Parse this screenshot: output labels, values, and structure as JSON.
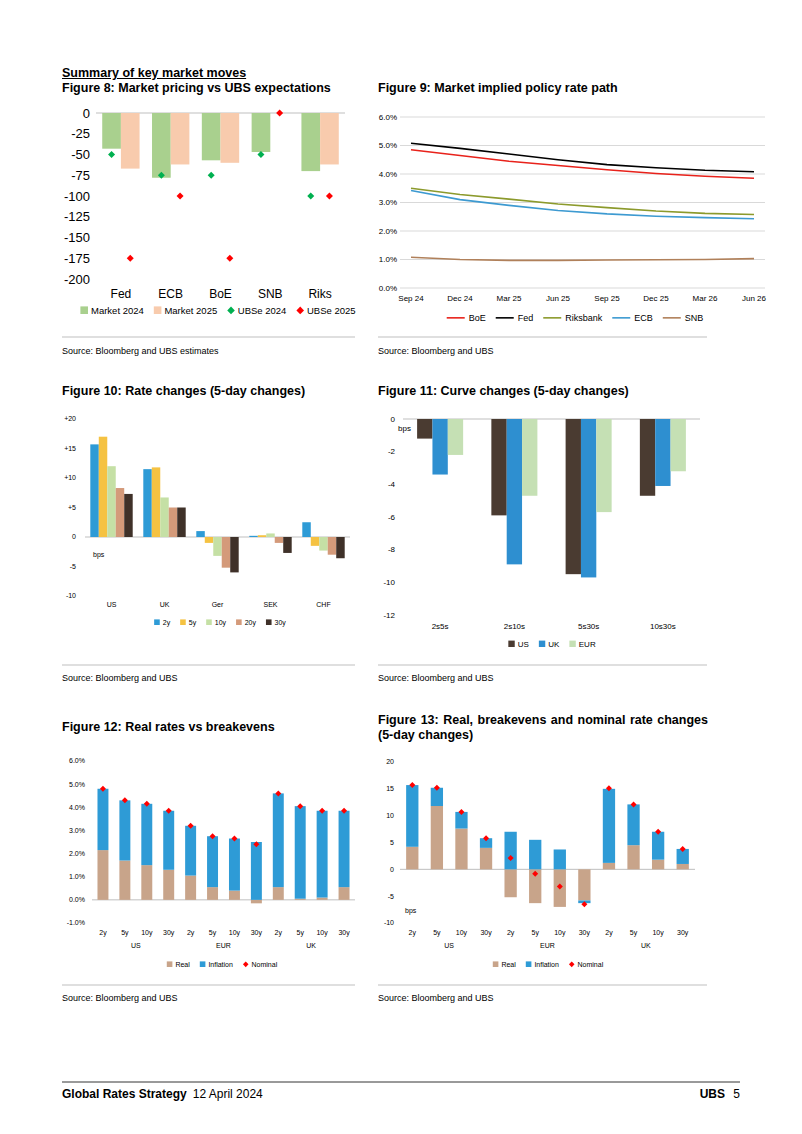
{
  "page": {
    "heading": "Summary of key market moves",
    "footer": {
      "report": "Global Rates Strategy",
      "date": "12 April 2024",
      "brand": "UBS",
      "page_number": "5"
    }
  },
  "chart_data": [
    {
      "type": "bar",
      "title": "Figure 8: Market pricing vs UBS expectations",
      "source": "Source: Bloomberg and UBS estimates",
      "categories": [
        "Fed",
        "ECB",
        "BoE",
        "SNB",
        "Riks"
      ],
      "series": [
        {
          "name": "Market 2024",
          "type": "bar",
          "color": "#a9d08e",
          "values": [
            -43,
            -78,
            -57,
            -47,
            -70
          ]
        },
        {
          "name": "Market 2025",
          "type": "bar",
          "color": "#f8cbad",
          "values": [
            -67,
            -62,
            -60,
            0,
            -62
          ]
        },
        {
          "name": "UBSe 2024",
          "type": "scatter",
          "marker": "diamond",
          "color": "#00b050",
          "values": [
            -50,
            -75,
            -75,
            -50,
            -100
          ]
        },
        {
          "name": "UBSe 2025",
          "type": "scatter",
          "marker": "diamond",
          "color": "#ff0000",
          "values": [
            -175,
            -100,
            -175,
            0,
            -100
          ]
        }
      ],
      "ylim": [
        -200,
        0
      ],
      "yticks": [
        0,
        -25,
        -50,
        -75,
        -100,
        -125,
        -150,
        -175,
        -200
      ],
      "grid": false,
      "legend": "bottom"
    },
    {
      "type": "line",
      "title": "Figure 9: Market implied policy rate path",
      "source": "Source: Bloomberg and UBS",
      "categories": [
        "Sep 24",
        "Dec 24",
        "Mar 25",
        "Jun 25",
        "Sep 25",
        "Dec 25",
        "Mar 26",
        "Jun 26"
      ],
      "series": [
        {
          "name": "BoE",
          "color": "#e8221b",
          "values": [
            4.85,
            4.65,
            4.45,
            4.3,
            4.15,
            4.02,
            3.92,
            3.85
          ]
        },
        {
          "name": "Fed",
          "color": "#000000",
          "values": [
            5.08,
            4.9,
            4.7,
            4.5,
            4.33,
            4.22,
            4.13,
            4.08
          ]
        },
        {
          "name": "Riksbank",
          "color": "#8c9a2c",
          "values": [
            3.5,
            3.28,
            3.12,
            2.95,
            2.82,
            2.7,
            2.62,
            2.58
          ]
        },
        {
          "name": "ECB",
          "color": "#3d9ad1",
          "values": [
            3.42,
            3.1,
            2.9,
            2.72,
            2.6,
            2.52,
            2.47,
            2.43
          ]
        },
        {
          "name": "SNB",
          "color": "#b0805a",
          "values": [
            1.08,
            1.0,
            0.97,
            0.97,
            0.98,
            0.99,
            1.0,
            1.03
          ]
        }
      ],
      "ylim": [
        0,
        6
      ],
      "yticks": [
        {
          "value": 6,
          "label": "6.0%"
        },
        {
          "value": 5,
          "label": "5.0%"
        },
        {
          "value": 4,
          "label": "4.0%"
        },
        {
          "value": 3,
          "label": "3.0%"
        },
        {
          "value": 2,
          "label": "2.0%"
        },
        {
          "value": 1,
          "label": "1.0%"
        },
        {
          "value": 0,
          "label": "0.0%"
        }
      ],
      "grid": true,
      "legend": "bottom"
    },
    {
      "type": "bar",
      "title": "Figure 10: Rate changes (5-day changes)",
      "source": "Source: Bloomberg and UBS",
      "y_label": "bps",
      "categories": [
        "US",
        "UK",
        "Ger",
        "SEK",
        "CHF"
      ],
      "series": [
        {
          "name": "2y",
          "color": "#2e9bd6",
          "values": [
            15.7,
            11.5,
            1,
            0.2,
            2.5
          ]
        },
        {
          "name": "5y",
          "color": "#f5c242",
          "values": [
            17,
            11.8,
            -1,
            0.3,
            -1.5
          ]
        },
        {
          "name": "10y",
          "color": "#c5e0a5",
          "values": [
            12,
            6.7,
            -3.2,
            0.6,
            -2.3
          ]
        },
        {
          "name": "20y",
          "color": "#d49a7a",
          "values": [
            8.3,
            5,
            -5.2,
            -1,
            -3
          ]
        },
        {
          "name": "30y",
          "color": "#3f3129",
          "values": [
            7.3,
            5,
            -6,
            -2.7,
            -3.6
          ]
        }
      ],
      "ylim": [
        -10,
        20
      ],
      "yticks": [
        {
          "value": 20,
          "label": "+20"
        },
        {
          "value": 15,
          "label": "+15"
        },
        {
          "value": 10,
          "label": "+10"
        },
        {
          "value": 5,
          "label": "+5"
        },
        0,
        -5,
        -10
      ],
      "grid": false,
      "legend": "bottom"
    },
    {
      "type": "bar",
      "title": "Figure 11: Curve changes (5-day changes)",
      "source": "Source: Bloomberg and UBS",
      "y_label": "bps",
      "categories": [
        "2s5s",
        "2s10s",
        "5s30s",
        "10s30s"
      ],
      "series": [
        {
          "name": "US",
          "color": "#4a3b31",
          "values": [
            -1.2,
            -5.9,
            -9.5,
            -4.7
          ]
        },
        {
          "name": "UK",
          "color": "#2e8fd0",
          "values": [
            -3.4,
            -8.9,
            -9.7,
            -4.1
          ]
        },
        {
          "name": "EUR",
          "color": "#c5e0b4",
          "values": [
            -2.2,
            -4.7,
            -5.7,
            -3.2
          ]
        }
      ],
      "ylim": [
        -12,
        0
      ],
      "yticks": [
        0,
        -2,
        -4,
        -6,
        -8,
        -10,
        -12
      ],
      "grid": false,
      "legend": "bottom"
    },
    {
      "type": "bar",
      "title": "Figure 12: Real rates vs breakevens",
      "source": "Source: Bloomberg and UBS",
      "stacked": true,
      "categories": [
        "2y",
        "5y",
        "10y",
        "30y",
        "2y",
        "5y",
        "10y",
        "30y",
        "2y",
        "5y",
        "10y",
        "30y"
      ],
      "x_groups": [
        "US",
        "EUR",
        "UK"
      ],
      "series": [
        {
          "name": "Real",
          "type": "bar",
          "color": "#c8a48a",
          "values": [
            2.15,
            1.7,
            1.5,
            1.3,
            1.05,
            0.55,
            0.4,
            -0.15,
            0.55,
            0.05,
            0.1,
            0.55
          ]
        },
        {
          "name": "Inflation",
          "type": "bar",
          "color": "#2e9bd6",
          "values": [
            2.65,
            2.6,
            2.65,
            2.55,
            2.15,
            2.2,
            2.25,
            2.5,
            4.05,
            4.0,
            3.75,
            3.3
          ]
        },
        {
          "name": "Nominal",
          "type": "scatter",
          "marker": "diamond",
          "color": "#ff0000",
          "values": [
            4.8,
            4.3,
            4.15,
            3.85,
            3.2,
            2.75,
            2.65,
            2.4,
            4.6,
            4.05,
            3.85,
            3.85
          ]
        }
      ],
      "ylim": [
        -1,
        6
      ],
      "yticks": [
        {
          "value": 6,
          "label": "6.0%"
        },
        {
          "value": 5,
          "label": "5.0%"
        },
        {
          "value": 4,
          "label": "4.0%"
        },
        {
          "value": 3,
          "label": "3.0%"
        },
        {
          "value": 2,
          "label": "2.0%"
        },
        {
          "value": 1,
          "label": "1.0%"
        },
        {
          "value": 0,
          "label": "0.0%"
        },
        {
          "value": -1,
          "label": "-1.0%"
        }
      ],
      "grid": false,
      "legend": "bottom"
    },
    {
      "type": "bar",
      "title": "Figure 13: Real, breakevens and nominal rate changes (5-day changes)",
      "source": "Source: Bloomberg and UBS",
      "stacked": true,
      "y_label": "bps",
      "categories": [
        "2y",
        "5y",
        "10y",
        "30y",
        "2y",
        "5y",
        "10y",
        "30y",
        "2y",
        "5y",
        "10y",
        "30y"
      ],
      "x_groups": [
        "US",
        "EUR",
        "UK"
      ],
      "series": [
        {
          "name": "Real",
          "type": "bar",
          "color": "#c8a48a",
          "values": [
            4.2,
            11.8,
            7.6,
            4,
            -5.2,
            -6.3,
            -7,
            -5.8,
            1.2,
            4.5,
            1.8,
            1.0
          ]
        },
        {
          "name": "Inflation",
          "type": "bar",
          "color": "#2e9bd6",
          "values": [
            11.5,
            3.4,
            3.1,
            1.8,
            7,
            5.5,
            3.7,
            -0.5,
            13.8,
            7.6,
            5.2,
            2.8
          ]
        },
        {
          "name": "Nominal",
          "type": "scatter",
          "marker": "diamond",
          "color": "#ff0000",
          "values": [
            15.7,
            15.2,
            10.7,
            5.8,
            2.1,
            -0.8,
            -3.2,
            -6.5,
            15.1,
            12.1,
            7.0,
            3.8
          ]
        }
      ],
      "ylim": [
        -10,
        20
      ],
      "yticks": [
        20,
        15,
        10,
        5,
        0,
        -5,
        -10
      ],
      "grid": false,
      "legend": "bottom"
    }
  ]
}
